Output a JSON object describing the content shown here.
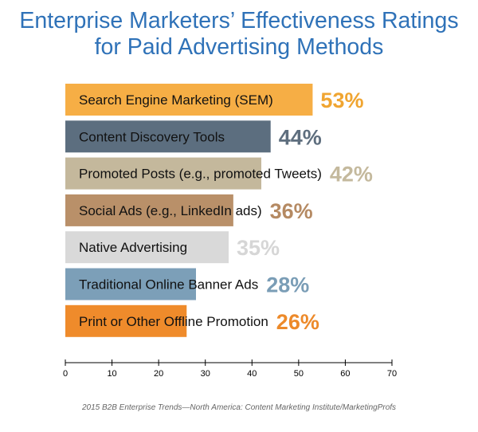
{
  "chart_data": {
    "type": "bar",
    "orientation": "horizontal",
    "title_lines": [
      "Enterprise Marketers’ Effectiveness Ratings",
      "for Paid Advertising Methods"
    ],
    "categories": [
      "Search Engine Marketing (SEM)",
      "Content Discovery Tools",
      "Promoted Posts (e.g., promoted Tweets)",
      "Social Ads (e.g., LinkedIn ads)",
      "Native Advertising",
      "Traditional Online Banner Ads",
      "Print or Other Offline Promotion"
    ],
    "values": [
      53,
      44,
      42,
      36,
      35,
      28,
      26
    ],
    "value_labels": [
      "53%",
      "44%",
      "42%",
      "36%",
      "35%",
      "28%",
      "26%"
    ],
    "bar_colors": [
      "#f6ae45",
      "#5c6e7f",
      "#c4b89c",
      "#b99069",
      "#d9d9d9",
      "#7c9fb8",
      "#ef8b2b"
    ],
    "label_colors": [
      "#f0a531",
      "#5e6e7e",
      "#c4b99d",
      "#b58a63",
      "#d6d6d6",
      "#7a9db6",
      "#ed8a2a"
    ],
    "xlim": [
      0,
      70
    ],
    "x_ticks": [
      "0",
      "10",
      "20",
      "30",
      "40",
      "50",
      "60",
      "70"
    ],
    "grid": false,
    "source": "2015 B2B Enterprise Trends—North America: Content Marketing Institute/MarketingProfs"
  }
}
